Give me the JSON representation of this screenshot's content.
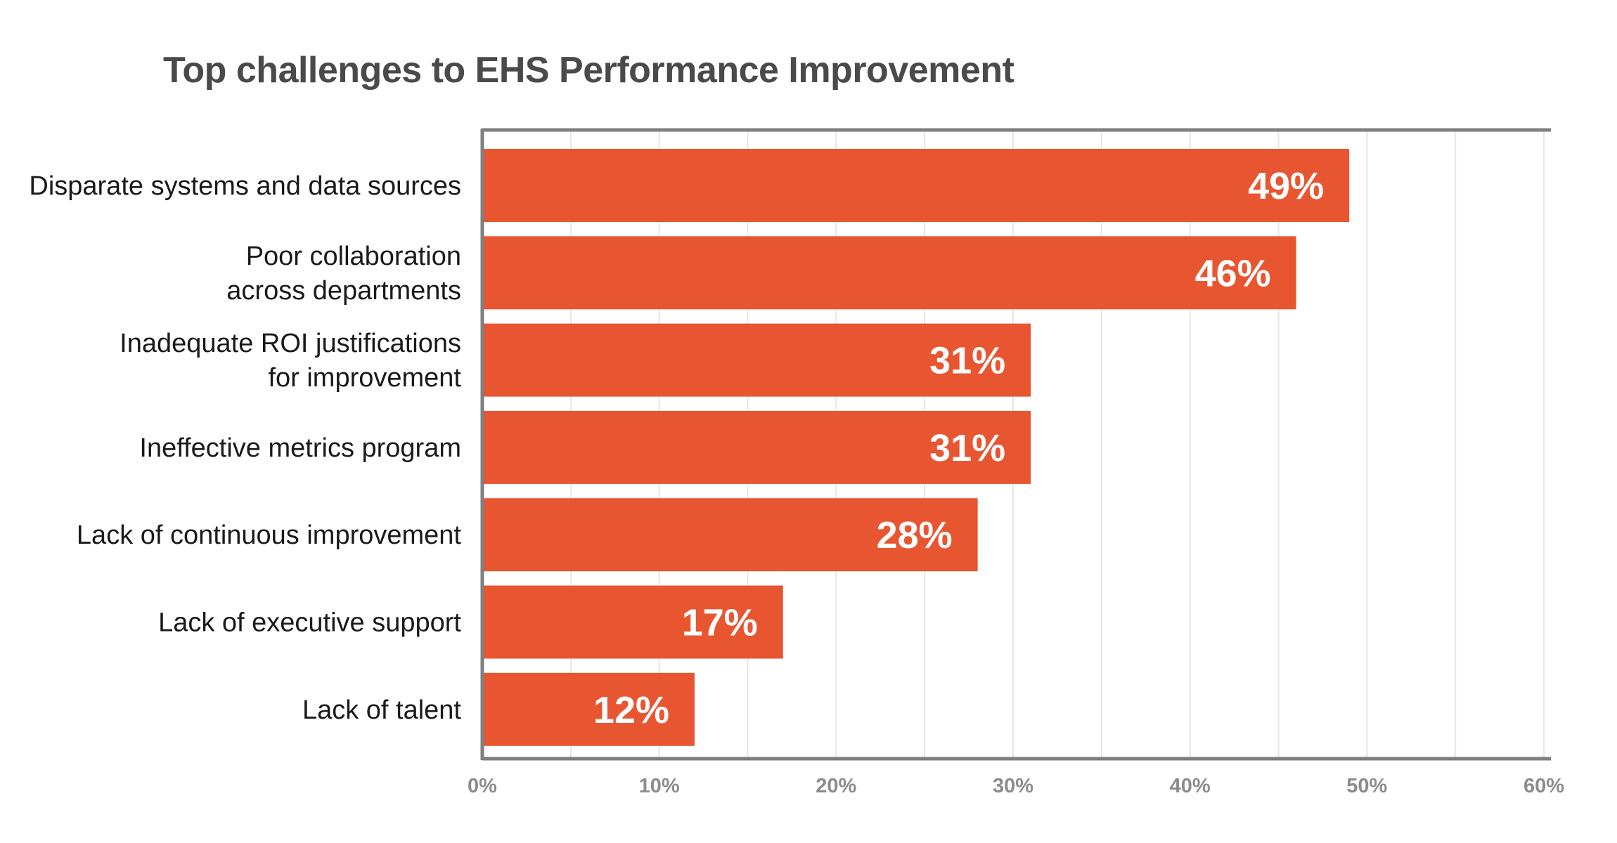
{
  "chart_data": {
    "type": "bar",
    "orientation": "horizontal",
    "title": "Top challenges to EHS Performance Improvement",
    "categories": [
      [
        "Disparate systems and data sources"
      ],
      [
        "Poor collaboration",
        "across departments"
      ],
      [
        "Inadequate ROI justifications",
        "for improvement"
      ],
      [
        "Ineffective metrics program"
      ],
      [
        "Lack of continuous improvement"
      ],
      [
        "Lack of executive support"
      ],
      [
        "Lack of talent"
      ]
    ],
    "values": [
      49,
      46,
      31,
      31,
      28,
      17,
      12
    ],
    "data_labels": [
      "49%",
      "46%",
      "31%",
      "31%",
      "28%",
      "17%",
      "12%"
    ],
    "xlim": [
      0,
      60
    ],
    "xticks": [
      0,
      10,
      20,
      30,
      40,
      50,
      60
    ],
    "xtick_labels": [
      "0%",
      "10%",
      "20%",
      "30%",
      "40%",
      "50%",
      "60%"
    ],
    "xlabel": "",
    "ylabel": "",
    "grid": "vertical",
    "legend": "none",
    "colors": {
      "bar": "#e85631",
      "axis": "#7f7f7f",
      "grid": "#e6e6e6",
      "title": "#4a4a4a",
      "category_text": "#1a1a1a",
      "tick_text": "#8c8c8c",
      "bar_text": "#ffffff"
    }
  }
}
